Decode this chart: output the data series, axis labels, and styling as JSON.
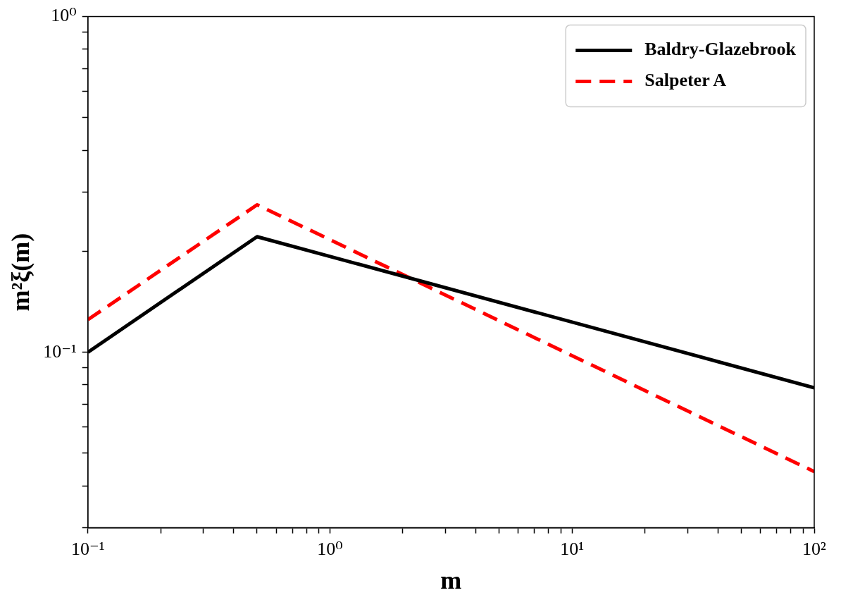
{
  "chart_data": {
    "type": "line",
    "xlabel": "m",
    "ylabel": "m²ξ(m)",
    "log": "xy",
    "xlim": [
      0.1,
      100
    ],
    "ylim": [
      0.03,
      1
    ],
    "xticks": [
      {
        "value": 0.1,
        "label": "10⁻¹"
      },
      {
        "value": 0.2,
        "label": null
      },
      {
        "value": 0.3,
        "label": null
      },
      {
        "value": 0.4,
        "label": null
      },
      {
        "value": 0.5,
        "label": null
      },
      {
        "value": 0.6,
        "label": null
      },
      {
        "value": 0.7,
        "label": null
      },
      {
        "value": 0.8,
        "label": null
      },
      {
        "value": 0.9,
        "label": null
      },
      {
        "value": 1,
        "label": "10⁰"
      },
      {
        "value": 2,
        "label": null
      },
      {
        "value": 3,
        "label": null
      },
      {
        "value": 4,
        "label": null
      },
      {
        "value": 5,
        "label": null
      },
      {
        "value": 6,
        "label": null
      },
      {
        "value": 7,
        "label": null
      },
      {
        "value": 8,
        "label": null
      },
      {
        "value": 9,
        "label": null
      },
      {
        "value": 10,
        "label": "10¹"
      },
      {
        "value": 20,
        "label": null
      },
      {
        "value": 30,
        "label": null
      },
      {
        "value": 40,
        "label": null
      },
      {
        "value": 50,
        "label": null
      },
      {
        "value": 60,
        "label": null
      },
      {
        "value": 70,
        "label": null
      },
      {
        "value": 80,
        "label": null
      },
      {
        "value": 90,
        "label": null
      },
      {
        "value": 100,
        "label": "10²"
      }
    ],
    "yticks": [
      {
        "value": 0.03,
        "label": null
      },
      {
        "value": 0.04,
        "label": null
      },
      {
        "value": 0.05,
        "label": null
      },
      {
        "value": 0.06,
        "label": null
      },
      {
        "value": 0.07,
        "label": null
      },
      {
        "value": 0.08,
        "label": null
      },
      {
        "value": 0.09,
        "label": null
      },
      {
        "value": 0.1,
        "label": "10⁻¹"
      },
      {
        "value": 0.2,
        "label": null
      },
      {
        "value": 0.3,
        "label": null
      },
      {
        "value": 0.4,
        "label": null
      },
      {
        "value": 0.5,
        "label": null
      },
      {
        "value": 0.6,
        "label": null
      },
      {
        "value": 0.7,
        "label": null
      },
      {
        "value": 0.8,
        "label": null
      },
      {
        "value": 0.9,
        "label": null
      },
      {
        "value": 1,
        "label": "10⁰"
      }
    ],
    "legend": "top right",
    "marker": "none",
    "series": [
      {
        "name": "Baldry-Glazebrook",
        "color": "#000000",
        "line_style": "solid",
        "x": [
          0.1,
          0.5,
          100
        ],
        "values": [
          0.1,
          0.221,
          0.0784
        ]
      },
      {
        "name": "Salpeter A",
        "color": "#ff0000",
        "line_style": "dashed",
        "x": [
          0.1,
          0.5,
          100
        ],
        "values": [
          0.125,
          0.275,
          0.0441
        ]
      }
    ]
  }
}
